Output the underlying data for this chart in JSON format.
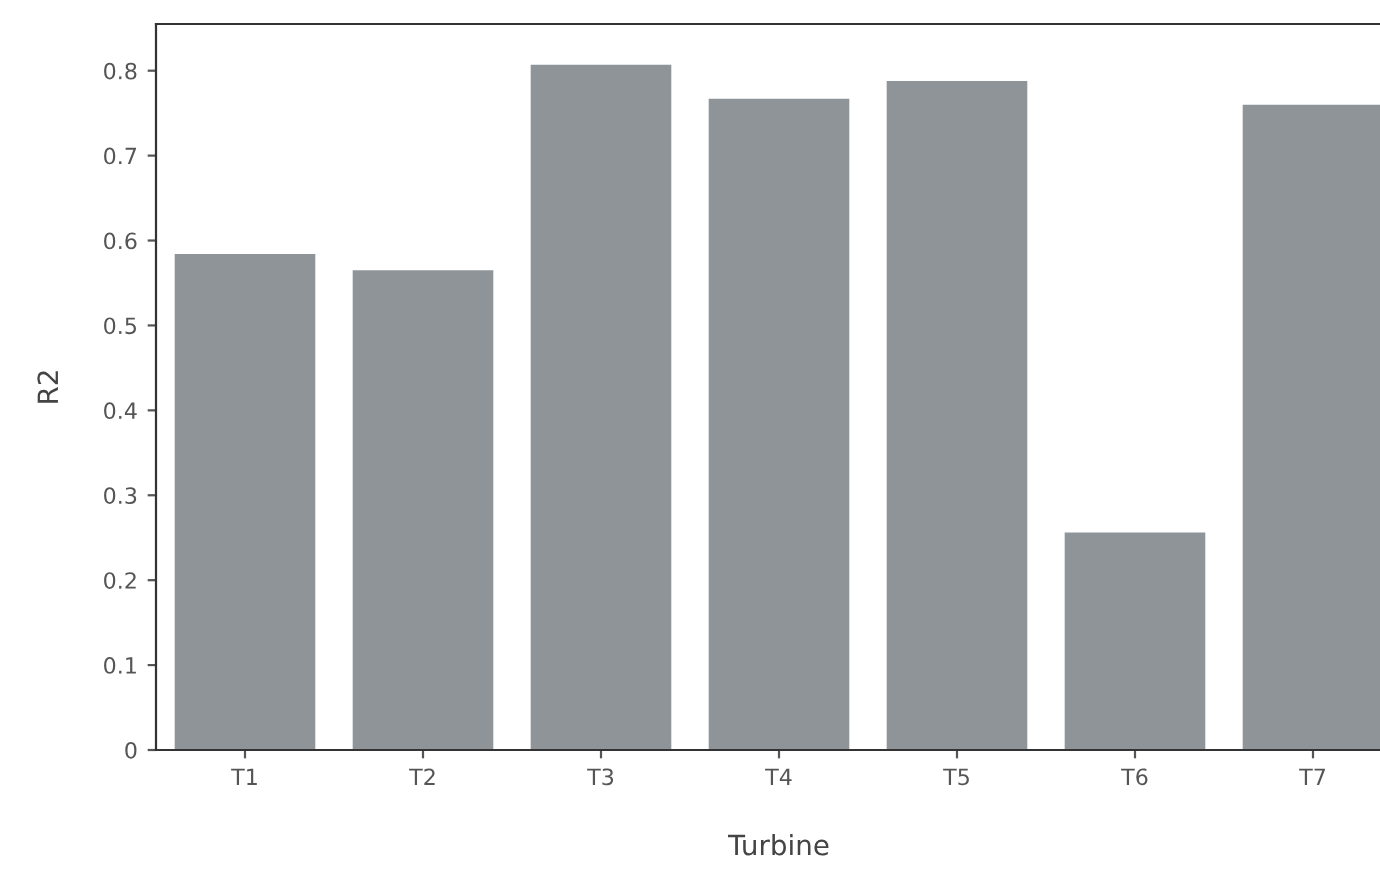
{
  "chart_data": {
    "type": "bar",
    "xlabel": "Turbine",
    "ylabel": "R2",
    "categories": [
      "T1",
      "T2",
      "T3",
      "T4",
      "T5",
      "T6",
      "T7"
    ],
    "values": [
      0.584,
      0.565,
      0.807,
      0.767,
      0.788,
      0.256,
      0.76
    ],
    "color": "#8f9499",
    "ylim": [
      0,
      0.855
    ],
    "yticks": [
      0,
      0.1,
      0.2,
      0.3,
      0.4,
      0.5,
      0.6,
      0.7,
      0.8
    ],
    "grid": false
  }
}
